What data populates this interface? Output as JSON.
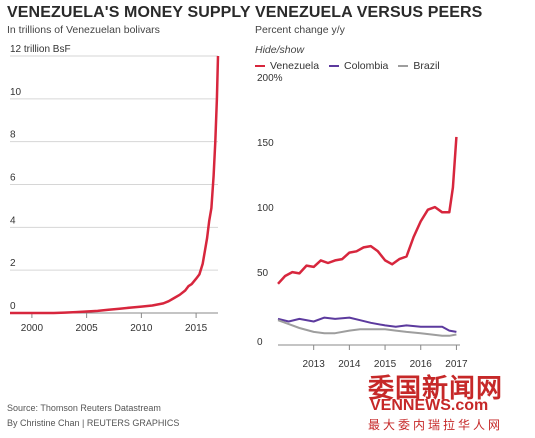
{
  "chart_data": [
    {
      "type": "line",
      "title": "VENEZUELA'S MONEY SUPPLY",
      "subtitle": "In trillions of Venezuelan bolivars",
      "ylim": [
        0,
        12
      ],
      "xlim": [
        1998,
        2017
      ],
      "yticks": [
        {
          "v": 12,
          "label": "12 trillion BsF"
        },
        {
          "v": 10,
          "label": "10"
        },
        {
          "v": 8,
          "label": "8"
        },
        {
          "v": 6,
          "label": "6"
        },
        {
          "v": 4,
          "label": "4"
        },
        {
          "v": 2,
          "label": "2"
        },
        {
          "v": 0,
          "label": "0"
        }
      ],
      "xticks": [
        {
          "v": 2000,
          "label": "2000"
        },
        {
          "v": 2005,
          "label": "2005"
        },
        {
          "v": 2010,
          "label": "2010"
        },
        {
          "v": 2015,
          "label": "2015"
        }
      ],
      "grid": true,
      "series": [
        {
          "color": "#d7263d",
          "x": [
            1998,
            1999,
            2000,
            2001,
            2002,
            2003,
            2004,
            2005,
            2006,
            2007,
            2008,
            2009,
            2010,
            2011,
            2012,
            2012.5,
            2013,
            2013.5,
            2014,
            2014.3,
            2014.6,
            2015,
            2015.3,
            2015.6,
            2015.8,
            2016,
            2016.2,
            2016.4,
            2016.6,
            2016.75,
            2016.9,
            2017
          ],
          "y": [
            0,
            0,
            0,
            0,
            0,
            0.02,
            0.04,
            0.07,
            0.1,
            0.15,
            0.2,
            0.25,
            0.3,
            0.35,
            0.45,
            0.55,
            0.7,
            0.85,
            1.05,
            1.25,
            1.35,
            1.6,
            1.8,
            2.3,
            2.9,
            3.5,
            4.3,
            4.9,
            6.4,
            8.0,
            10.0,
            12.0
          ]
        }
      ]
    },
    {
      "type": "line",
      "title": "VENEZUELA VERSUS PEERS",
      "subtitle": "Percent change y/y",
      "ylim": [
        0,
        200
      ],
      "xlim": [
        2012,
        2017.1
      ],
      "yticks": [
        {
          "v": 200,
          "label": "200%"
        },
        {
          "v": 150,
          "label": "150"
        },
        {
          "v": 100,
          "label": "100"
        },
        {
          "v": 50,
          "label": "50"
        },
        {
          "v": 0,
          "label": "0"
        }
      ],
      "xticks": [
        {
          "v": 2013,
          "label": "2013"
        },
        {
          "v": 2014,
          "label": "2014"
        },
        {
          "v": 2015,
          "label": "2015"
        },
        {
          "v": 2016,
          "label": "2016"
        },
        {
          "v": 2017,
          "label": "2017"
        }
      ],
      "grid": false,
      "series": [
        {
          "name": "Venezuela",
          "color": "#d7263d",
          "x": [
            2012,
            2012.2,
            2012.4,
            2012.6,
            2012.8,
            2013.0,
            2013.2,
            2013.4,
            2013.6,
            2013.8,
            2014.0,
            2014.2,
            2014.4,
            2014.6,
            2014.8,
            2015.0,
            2015.2,
            2015.4,
            2015.6,
            2015.8,
            2016.0,
            2016.2,
            2016.4,
            2016.6,
            2016.8,
            2016.9,
            2017.0
          ],
          "y": [
            44,
            50,
            53,
            52,
            58,
            57,
            62,
            60,
            62,
            63,
            68,
            69,
            72,
            73,
            69,
            62,
            59,
            63,
            65,
            80,
            92,
            101,
            103,
            99,
            99,
            118,
            157
          ]
        },
        {
          "name": "Colombia",
          "color": "#5c3a9e",
          "x": [
            2012,
            2012.3,
            2012.6,
            2013.0,
            2013.3,
            2013.6,
            2014.0,
            2014.3,
            2014.6,
            2015.0,
            2015.3,
            2015.6,
            2016.0,
            2016.3,
            2016.6,
            2016.8,
            2017.0
          ],
          "y": [
            17,
            15,
            17,
            15,
            18,
            17,
            18,
            16,
            14,
            12,
            11,
            12,
            11,
            11,
            11,
            8,
            7
          ]
        },
        {
          "name": "Brazil",
          "color": "#9e9e9e",
          "x": [
            2012,
            2012.3,
            2012.6,
            2013.0,
            2013.3,
            2013.6,
            2014.0,
            2014.3,
            2014.6,
            2015.0,
            2015.3,
            2015.6,
            2016.0,
            2016.3,
            2016.6,
            2016.8,
            2017.0
          ],
          "y": [
            16,
            13,
            10,
            7,
            6,
            6,
            8,
            9,
            9,
            9,
            8,
            7,
            6,
            5,
            4,
            4,
            5
          ]
        }
      ],
      "legend_position": "top-left"
    }
  ],
  "right": {
    "hide_show": "Hide/show",
    "legend": [
      {
        "label": "Venezuela",
        "color": "#d7263d"
      },
      {
        "label": "Colombia",
        "color": "#5c3a9e"
      },
      {
        "label": "Brazil",
        "color": "#9e9e9e"
      }
    ]
  },
  "footer": {
    "source": "Source: Thomson Reuters Datastream",
    "credit": "By Christine Chan | REUTERS GRAPHICS"
  },
  "watermark": {
    "cn": "委国新闻网",
    "en": "VENNEWS.com",
    "tag": "最大委内瑞拉华人网"
  }
}
